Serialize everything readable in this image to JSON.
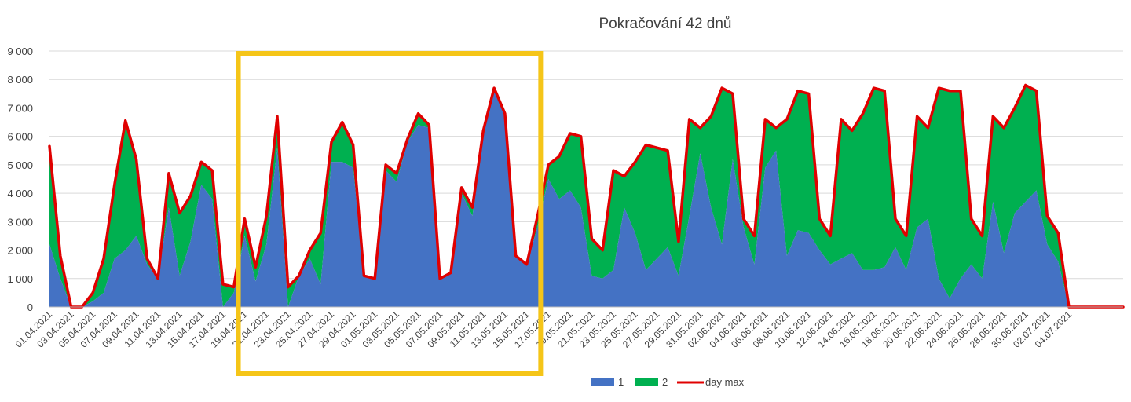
{
  "chart_data": {
    "type": "area",
    "title": "Pokračování 42 dnů",
    "ylim": [
      0,
      9000
    ],
    "yticks": [
      0,
      1000,
      2000,
      3000,
      4000,
      5000,
      6000,
      7000,
      8000,
      9000
    ],
    "ytick_labels": [
      "0",
      "1 000",
      "2 000",
      "3 000",
      "4 000",
      "5 000",
      "6 000",
      "7 000",
      "8 000",
      "9 000"
    ],
    "grid": true,
    "legend_position": "bottom",
    "colors": {
      "s1": "#4472c4",
      "s2": "#00b050",
      "max": "#e00000",
      "highlight": "#f5c518"
    },
    "x": [
      "01.04.2021",
      "02.04.2021",
      "03.04.2021",
      "04.04.2021",
      "05.04.2021",
      "06.04.2021",
      "07.04.2021",
      "08.04.2021",
      "09.04.2021",
      "10.04.2021",
      "11.04.2021",
      "12.04.2021",
      "13.04.2021",
      "14.04.2021",
      "15.04.2021",
      "16.04.2021",
      "17.04.2021",
      "18.04.2021",
      "19.04.2021",
      "20.04.2021",
      "21.04.2021",
      "22.04.2021",
      "23.04.2021",
      "24.04.2021",
      "25.04.2021",
      "26.04.2021",
      "27.04.2021",
      "28.04.2021",
      "29.04.2021",
      "30.04.2021",
      "01.05.2021",
      "02.05.2021",
      "03.05.2021",
      "04.05.2021",
      "05.05.2021",
      "06.05.2021",
      "07.05.2021",
      "08.05.2021",
      "09.05.2021",
      "10.05.2021",
      "11.05.2021",
      "12.05.2021",
      "13.05.2021",
      "14.05.2021",
      "15.05.2021",
      "16.05.2021",
      "17.05.2021",
      "18.05.2021",
      "19.05.2021",
      "20.05.2021",
      "21.05.2021",
      "22.05.2021",
      "23.05.2021",
      "24.05.2021",
      "25.05.2021",
      "26.05.2021",
      "27.05.2021",
      "28.05.2021",
      "29.05.2021",
      "30.05.2021",
      "31.05.2021",
      "01.06.2021",
      "02.06.2021",
      "03.06.2021",
      "04.06.2021",
      "05.06.2021",
      "06.06.2021",
      "07.06.2021",
      "08.06.2021",
      "09.06.2021",
      "10.06.2021",
      "11.06.2021",
      "12.06.2021",
      "13.06.2021",
      "14.06.2021",
      "15.06.2021",
      "16.06.2021",
      "17.06.2021",
      "18.06.2021",
      "19.06.2021",
      "20.06.2021",
      "21.06.2021",
      "22.06.2021",
      "23.06.2021",
      "24.06.2021",
      "25.06.2021",
      "26.06.2021",
      "27.06.2021",
      "28.06.2021",
      "29.06.2021",
      "30.06.2021",
      "01.07.2021",
      "02.07.2021",
      "03.07.2021",
      "04.07.2021",
      "05.07.2021",
      "06.07.2021",
      "07.07.2021",
      "08.07.2021",
      "09.07.2021"
    ],
    "x_labels_shown": [
      "01.04.2021",
      "03.04.2021",
      "05.04.2021",
      "07.04.2021",
      "09.04.2021",
      "11.04.2021",
      "13.04.2021",
      "15.04.2021",
      "17.04.2021",
      "19.04.2021",
      "21.04.2021",
      "23.04.2021",
      "25.04.2021",
      "27.04.2021",
      "29.04.2021",
      "01.05.2021",
      "03.05.2021",
      "05.05.2021",
      "07.05.2021",
      "09.05.2021",
      "11.05.2021",
      "13.05.2021",
      "15.05.2021",
      "17.05.2021",
      "19.05.2021",
      "21.05.2021",
      "23.05.2021",
      "25.05.2021",
      "27.05.2021",
      "29.05.2021",
      "31.05.2021",
      "02.06.2021",
      "04.06.2021",
      "06.06.2021",
      "08.06.2021",
      "10.06.2021",
      "12.06.2021",
      "14.06.2021",
      "16.06.2021",
      "18.06.2021",
      "20.06.2021",
      "22.06.2021",
      "24.06.2021",
      "26.06.2021",
      "28.06.2021",
      "30.06.2021",
      "02.07.2021",
      "04.07.2021"
    ],
    "series": [
      {
        "name": "1",
        "values": [
          2200,
          1000,
          0,
          0,
          200,
          500,
          1700,
          2000,
          2500,
          1500,
          1000,
          3500,
          1100,
          2300,
          4300,
          3800,
          0,
          500,
          2500,
          900,
          2200,
          5600,
          0,
          1100,
          1700,
          800,
          5100,
          5100,
          4900,
          1100,
          1000,
          4800,
          4400,
          5800,
          6400,
          6300,
          1000,
          1200,
          4000,
          3200,
          6200,
          7600,
          6800,
          1800,
          1500,
          2800,
          4500,
          3800,
          4100,
          3500,
          1100,
          1000,
          1300,
          3500,
          2600,
          1300,
          1700,
          2100,
          1100,
          3200,
          5400,
          3500,
          2200,
          5200,
          2800,
          1500,
          4900,
          5500,
          1800,
          2700,
          2600,
          2000,
          1500,
          1700,
          1900,
          1300,
          1300,
          1400,
          2100,
          1300,
          2800,
          3100,
          1000,
          300,
          1000,
          1500,
          1000,
          3700,
          1900,
          3300,
          3700,
          4100,
          2200,
          1600,
          0,
          0,
          0,
          0,
          0,
          0
        ]
      },
      {
        "name": "2",
        "values": [
          3400,
          800,
          0,
          0,
          300,
          1200,
          2600,
          4500,
          2700,
          200,
          0,
          1200,
          2200,
          1600,
          800,
          1000,
          800,
          200,
          600,
          500,
          1000,
          1100,
          700,
          0,
          300,
          1800,
          700,
          1400,
          800,
          0,
          0,
          200,
          300,
          100,
          400,
          100,
          0,
          0,
          200,
          300,
          0,
          100,
          0,
          0,
          0,
          400,
          500,
          1500,
          2000,
          2500,
          1300,
          1000,
          3500,
          1100,
          2500,
          4400,
          3900,
          3400,
          1200,
          3400,
          900,
          3200,
          5500,
          2300,
          300,
          1000,
          1700,
          800,
          4800,
          4900,
          4900,
          1100,
          1000,
          4900,
          4300,
          5500,
          6400,
          6200,
          1000,
          1200,
          3900,
          3200,
          6700,
          7300,
          6600,
          1600,
          1500,
          3000,
          4400,
          3700,
          4100,
          3500,
          1000,
          1000,
          0,
          0,
          0,
          0,
          0,
          0
        ]
      },
      {
        "name": "day max",
        "values": [
          5650,
          1800,
          0,
          0,
          500,
          1700,
          4300,
          6550,
          5200,
          1700,
          1000,
          4700,
          3300,
          3900,
          5100,
          4800,
          800,
          700,
          3100,
          1400,
          3200,
          6700,
          700,
          1100,
          2000,
          2600,
          5800,
          6500,
          5700,
          1100,
          1000,
          5000,
          4700,
          5900,
          6800,
          6400,
          1000,
          1200,
          4200,
          3500,
          6200,
          7700,
          6800,
          1800,
          1500,
          3200,
          5000,
          5300,
          6100,
          6000,
          2400,
          2000,
          4800,
          4600,
          5100,
          5700,
          5600,
          5500,
          2300,
          6600,
          6300,
          6700,
          7700,
          7500,
          3100,
          2500,
          6600,
          6300,
          6600,
          7600,
          7500,
          3100,
          2500,
          6600,
          6200,
          6800,
          7700,
          7600,
          3100,
          2500,
          6700,
          6300,
          7700,
          7600,
          7600,
          3100,
          2500,
          6700,
          6300,
          7000,
          7800,
          7600,
          3200,
          2600,
          0,
          0,
          0,
          0,
          0,
          0
        ]
      }
    ],
    "highlight": {
      "from": "19.04.2021",
      "to": "16.05.2021"
    }
  }
}
